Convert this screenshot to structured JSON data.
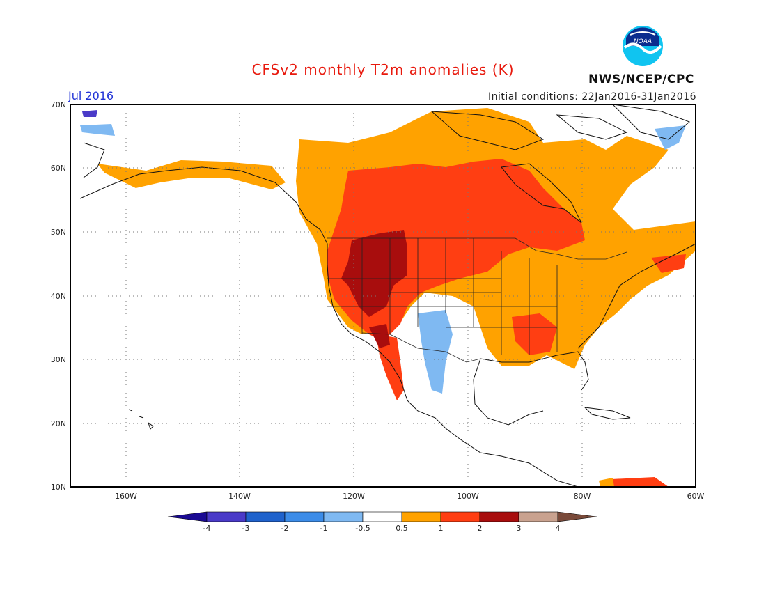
{
  "header": {
    "title": "CFSv2 monthly T2m anomalies (K)",
    "period": "Jul 2016",
    "initial_conditions": "Initial conditions: 22Jan2016-31Jan2016",
    "agency": "NWS/NCEP/CPC",
    "logo_text": "NOAA"
  },
  "map": {
    "lat_labels": [
      "70N",
      "60N",
      "50N",
      "40N",
      "30N",
      "20N",
      "10N"
    ],
    "lon_labels": [
      "160W",
      "140W",
      "120W",
      "100W",
      "80W",
      "60W"
    ],
    "regions": [
      {
        "name": "Central Canada & northern US",
        "anomaly_band": "1 to 2"
      },
      {
        "name": "Northwest US interior",
        "anomaly_band": "2 to 3"
      },
      {
        "name": "Northern Canada & Alaska coast",
        "anomaly_band": "0.5 to 1"
      },
      {
        "name": "New Mexico / West Texas",
        "anomaly_band": "-1 to -0.5"
      },
      {
        "name": "Far-north Canada / Alaska interior",
        "anomaly_band": "-0.5 to 0.5"
      }
    ]
  },
  "colorbar": {
    "labels": [
      "-4",
      "-3",
      "-2",
      "-1",
      "-0.5",
      "0.5",
      "1",
      "2",
      "3",
      "4"
    ],
    "colors": [
      "#1a0a93",
      "#4a3ac8",
      "#1f62cc",
      "#3c8ce8",
      "#7fb9f2",
      "#ffffff",
      "#ffa200",
      "#ff3e12",
      "#a80d0d",
      "#c9a28f",
      "#7a4a3a"
    ]
  }
}
